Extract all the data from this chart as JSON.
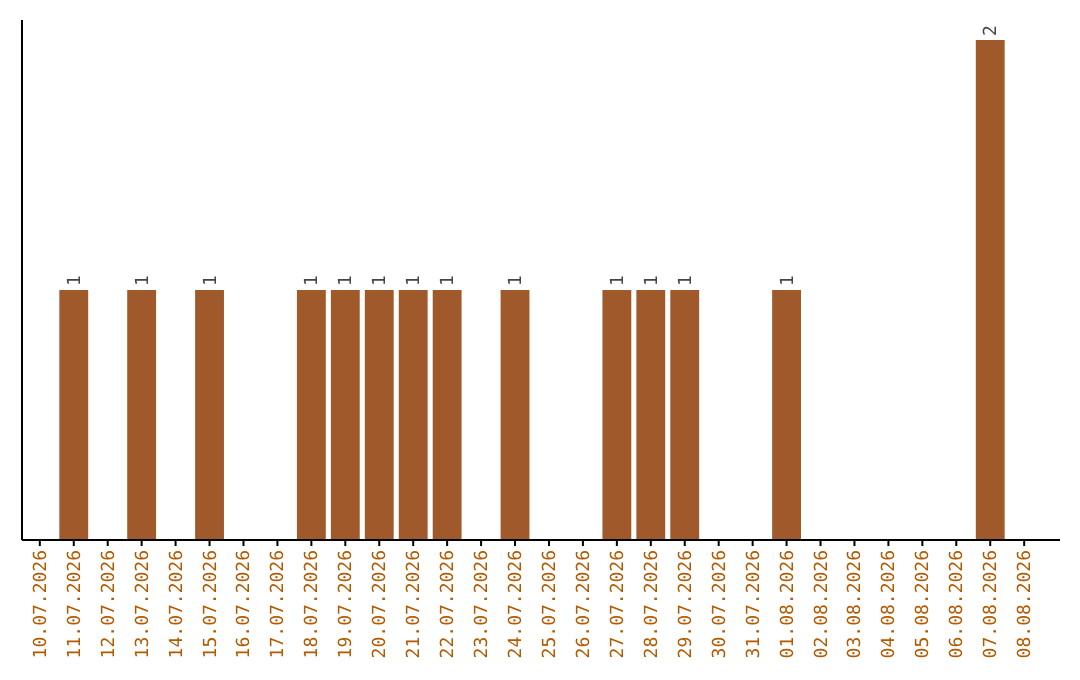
{
  "chart_data": {
    "type": "bar",
    "categories": [
      "10.07.2026",
      "11.07.2026",
      "12.07.2026",
      "13.07.2026",
      "14.07.2026",
      "15.07.2026",
      "16.07.2026",
      "17.07.2026",
      "18.07.2026",
      "19.07.2026",
      "20.07.2026",
      "21.07.2026",
      "22.07.2026",
      "23.07.2026",
      "24.07.2026",
      "25.07.2026",
      "26.07.2026",
      "27.07.2026",
      "28.07.2026",
      "29.07.2026",
      "30.07.2026",
      "31.07.2026",
      "01.08.2026",
      "02.08.2026",
      "03.08.2026",
      "04.08.2026",
      "05.08.2026",
      "06.08.2026",
      "07.08.2026",
      "08.08.2026"
    ],
    "values": [
      0,
      1,
      0,
      1,
      0,
      1,
      0,
      0,
      1,
      1,
      1,
      1,
      1,
      0,
      1,
      0,
      0,
      1,
      1,
      1,
      0,
      0,
      1,
      0,
      0,
      0,
      0,
      0,
      2,
      0
    ],
    "value_labels": [
      null,
      "1",
      null,
      "1",
      null,
      "1",
      null,
      null,
      "1",
      "1",
      "1",
      "1",
      "1",
      null,
      "1",
      null,
      null,
      "1",
      "1",
      "1",
      null,
      null,
      "1",
      null,
      null,
      null,
      null,
      null,
      "2",
      null
    ],
    "color": "#a0592a"
  }
}
